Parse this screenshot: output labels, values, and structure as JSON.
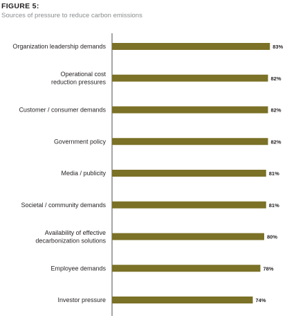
{
  "figure": {
    "title": "FIGURE 5:",
    "subtitle": "Sources of pressure to reduce carbon emissions"
  },
  "chart_data": {
    "type": "bar",
    "orientation": "horizontal",
    "categories": [
      [
        "Organization leadership demands"
      ],
      [
        "Operational cost",
        "reduction pressures"
      ],
      [
        "Customer / consumer demands"
      ],
      [
        "Government policy"
      ],
      [
        "Media / publicity"
      ],
      [
        "Societal / community demands"
      ],
      [
        "Availability of effective",
        "decarbonization solutions"
      ],
      [
        "Employee demands"
      ],
      [
        "Investor pressure"
      ]
    ],
    "values": [
      83,
      82,
      82,
      82,
      81,
      81,
      80,
      78,
      74
    ],
    "value_labels": [
      "83%",
      "82%",
      "82%",
      "82%",
      "81%",
      "81%",
      "80%",
      "78%",
      "74%"
    ],
    "unit": "%",
    "xlim": [
      0,
      100
    ],
    "bar_color": "#7b7127",
    "grid": false,
    "legend": "none"
  }
}
